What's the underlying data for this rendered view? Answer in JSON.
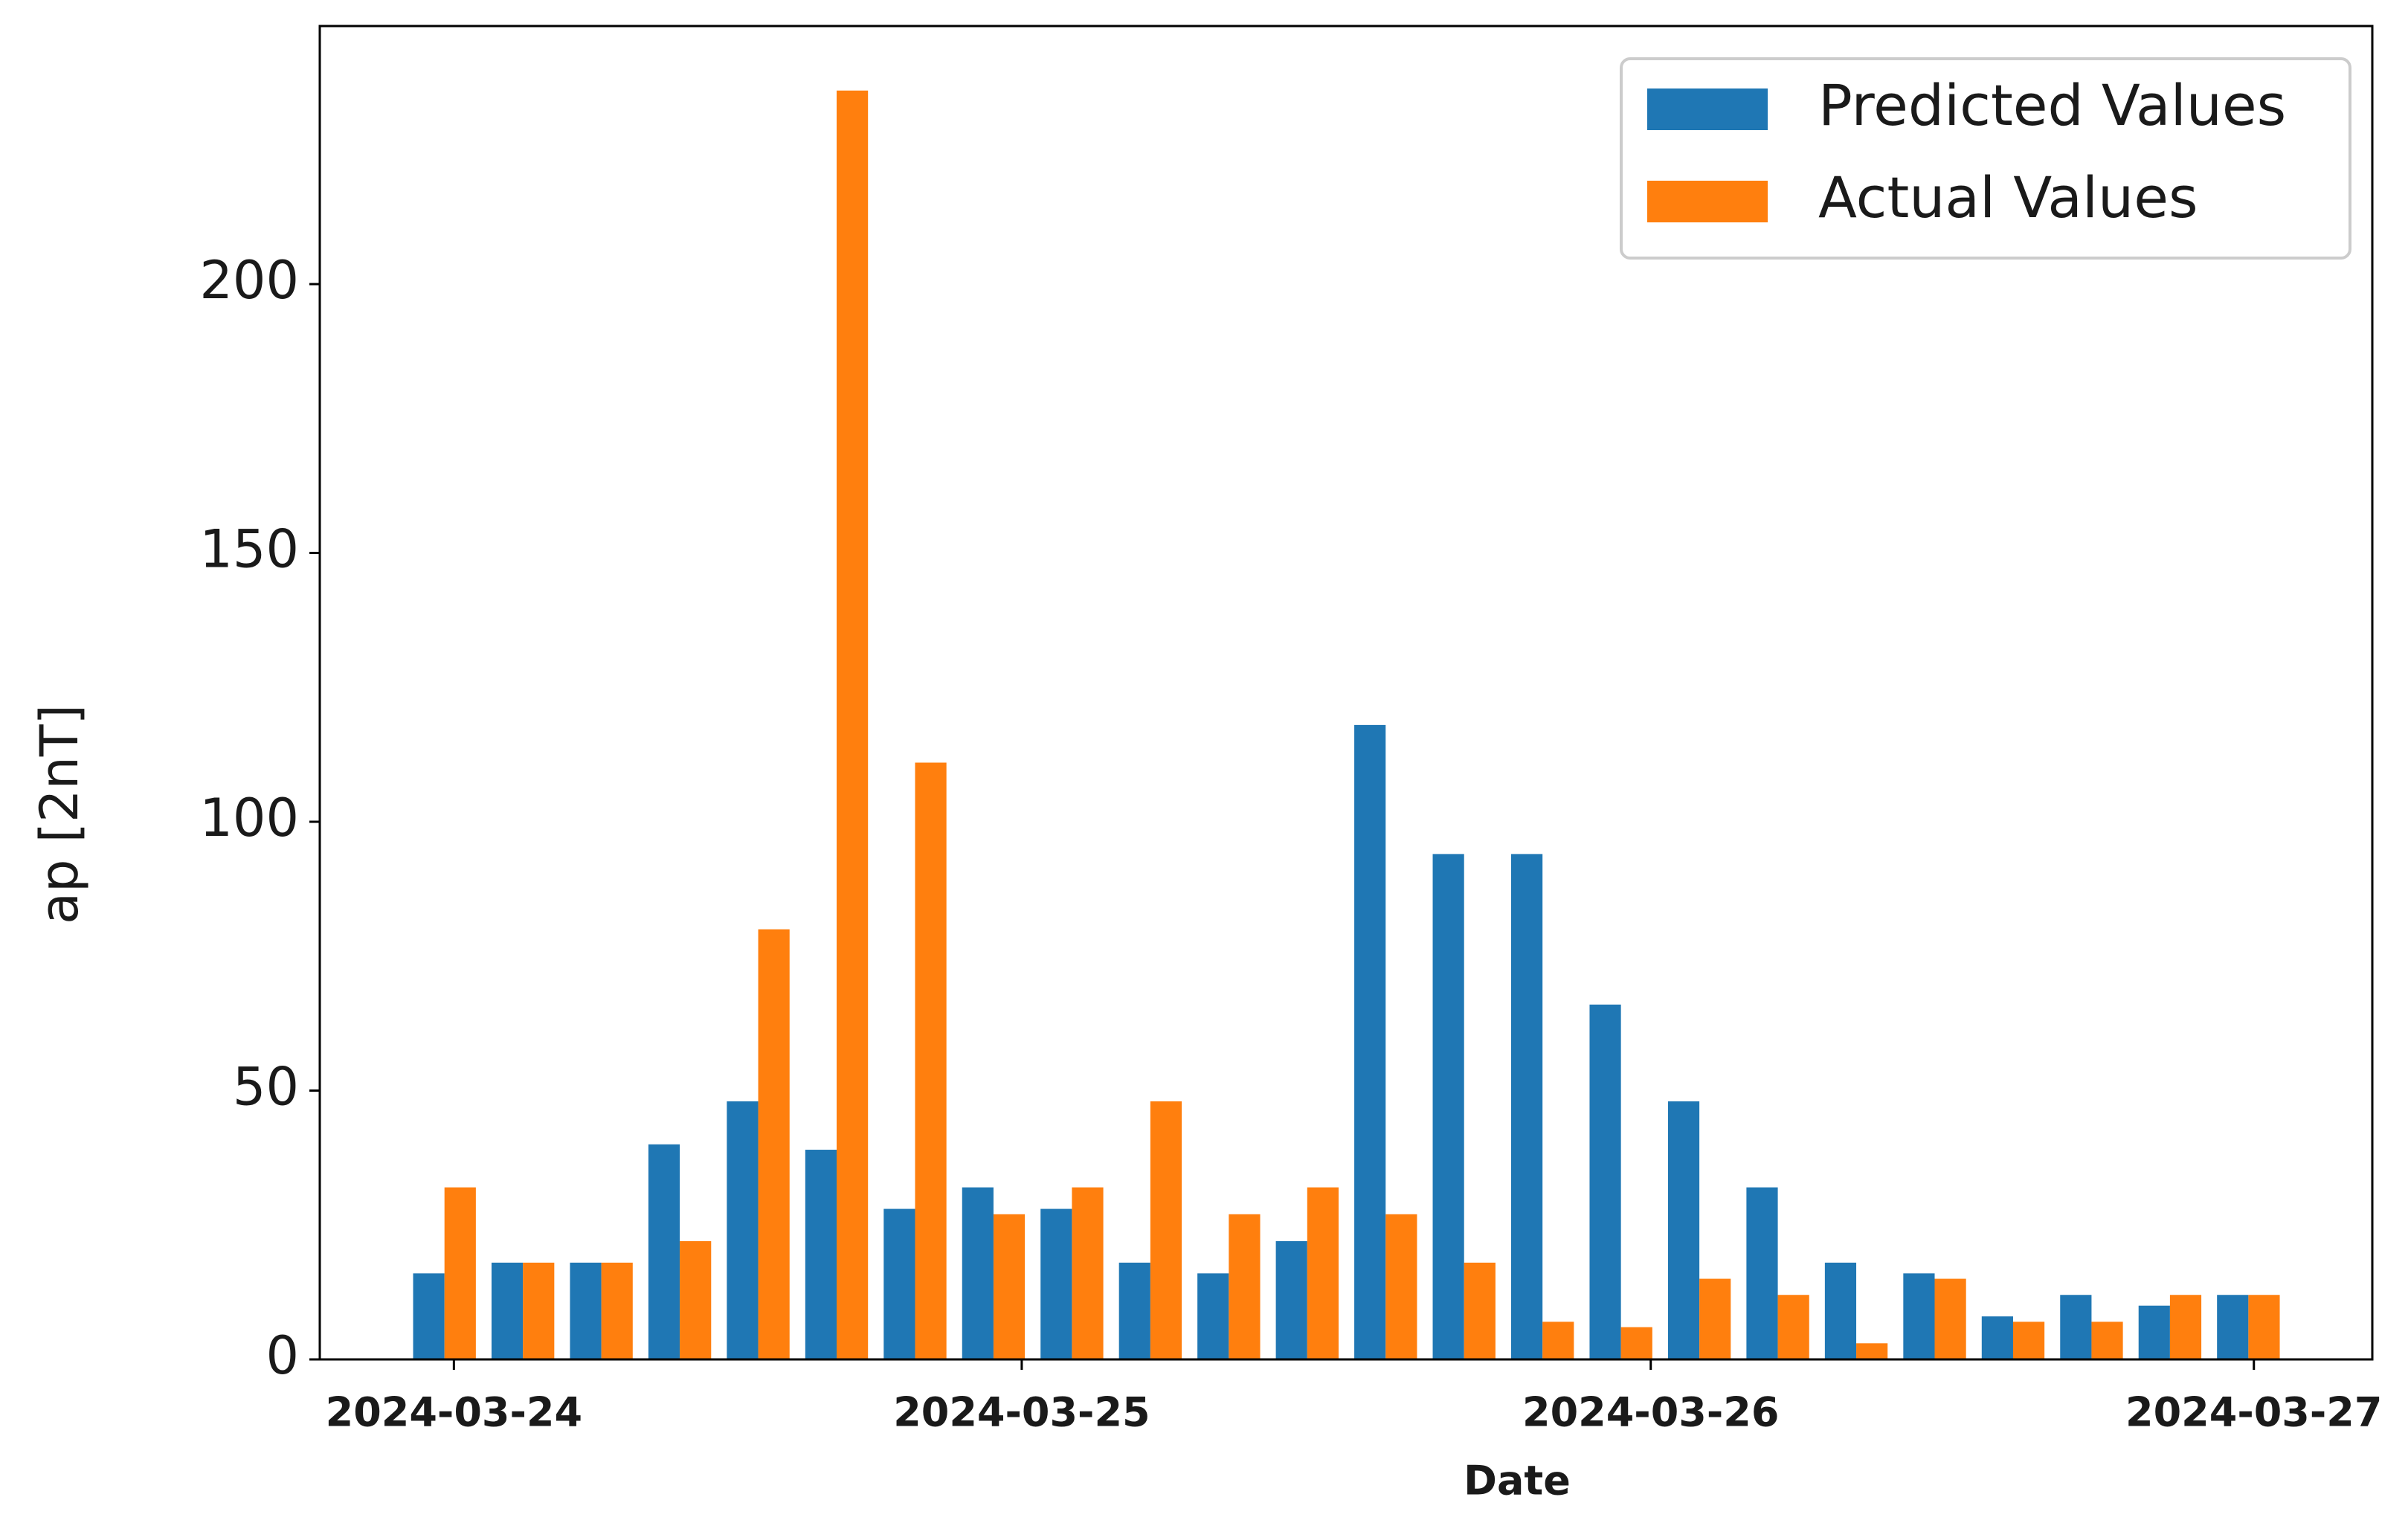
{
  "chart_data": {
    "type": "bar",
    "x_label": "Date",
    "y_label": "ap [2nT]",
    "categories": [
      null,
      null,
      null,
      null,
      null,
      null,
      null,
      null,
      null,
      null,
      null,
      null,
      null,
      null,
      null,
      null,
      null,
      null,
      null,
      null,
      null,
      null,
      null,
      null
    ],
    "series": [
      {
        "name": "Predicted Values",
        "color": "#1f77b4",
        "values": [
          16,
          18,
          18,
          40,
          48,
          39,
          28,
          32,
          28,
          18,
          16,
          22,
          118,
          94,
          94,
          66,
          48,
          32,
          18,
          16,
          8,
          12,
          10,
          12
        ]
      },
      {
        "name": "Actual Values",
        "color": "#ff7f0e",
        "values": [
          32,
          18,
          18,
          22,
          80,
          236,
          111,
          27,
          32,
          48,
          27,
          32,
          27,
          18,
          7,
          6,
          15,
          12,
          3,
          15,
          7,
          7,
          12,
          12
        ]
      }
    ],
    "xlim": [
      -1.59,
      24.58
    ],
    "xticks": [
      {
        "value": 0.12,
        "label": "2024-03-24"
      },
      {
        "value": 7.36,
        "label": "2024-03-25"
      },
      {
        "value": 15.38,
        "label": "2024-03-26"
      },
      {
        "value": 23.07,
        "label": "2024-03-27"
      }
    ],
    "ylim": [
      0,
      248
    ],
    "yticks": [
      0,
      50,
      100,
      150,
      200
    ],
    "grid": false,
    "legend": "upper right"
  }
}
